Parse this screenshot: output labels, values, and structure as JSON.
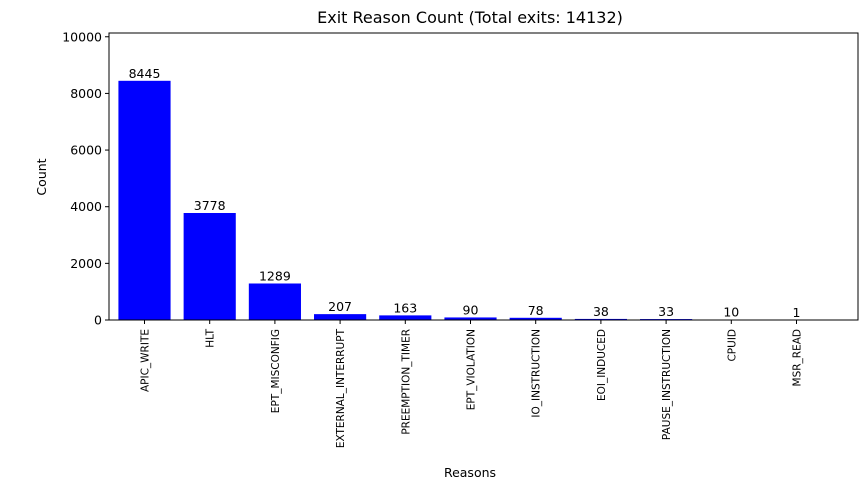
{
  "chart_data": {
    "type": "bar",
    "title": "Exit Reason Count (Total exits: 14132)",
    "xlabel": "Reasons",
    "ylabel": "Count",
    "categories": [
      "APIC_WRITE",
      "HLT",
      "EPT_MISCONFIG",
      "EXTERNAL_INTERRUPT",
      "PREEMPTION_TIMER",
      "EPT_VIOLATION",
      "IO_INSTRUCTION",
      "EOI_INDUCED",
      "PAUSE_INSTRUCTION",
      "CPUID",
      "MSR_READ"
    ],
    "values": [
      8445,
      3778,
      1289,
      207,
      163,
      90,
      78,
      38,
      33,
      10,
      1
    ],
    "ylim": [
      0,
      10133
    ],
    "yticks": [
      0,
      2000,
      4000,
      6000,
      8000,
      10000
    ],
    "bar_color": "#0000ff",
    "grid": false,
    "legend": "none"
  }
}
